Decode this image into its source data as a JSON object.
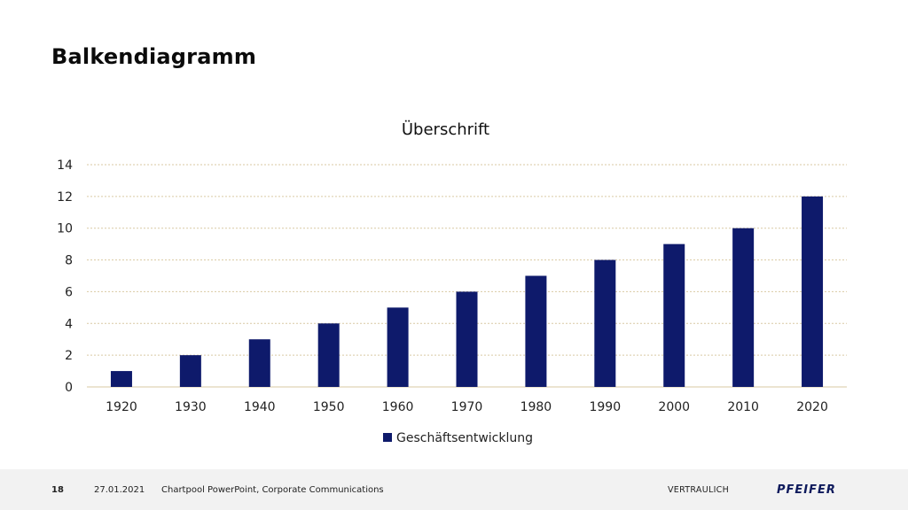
{
  "slide": {
    "title": "Balkendiagramm"
  },
  "chart_data": {
    "type": "bar",
    "title": "Überschrift",
    "categories": [
      "1920",
      "1930",
      "1940",
      "1950",
      "1960",
      "1970",
      "1980",
      "1990",
      "2000",
      "2010",
      "2020"
    ],
    "series": [
      {
        "name": "Geschäftsentwicklung",
        "values": [
          1,
          2,
          3,
          4,
          5,
          6,
          7,
          8,
          9,
          10,
          12
        ]
      }
    ],
    "ylim": [
      0,
      14
    ],
    "yticks": [
      0,
      2,
      4,
      6,
      8,
      10,
      12,
      14
    ],
    "grid": true,
    "legend_position": "bottom",
    "colors": {
      "bar": "#0e1a6b",
      "grid": "#d9c9a3",
      "axis": "#d9c9a3"
    }
  },
  "footer": {
    "page_number": "18",
    "date": "27.01.2021",
    "source": "Chartpool PowerPoint, Corporate Communications",
    "confidentiality": "VERTRAULICH",
    "logo_text": "PFEIFER"
  }
}
